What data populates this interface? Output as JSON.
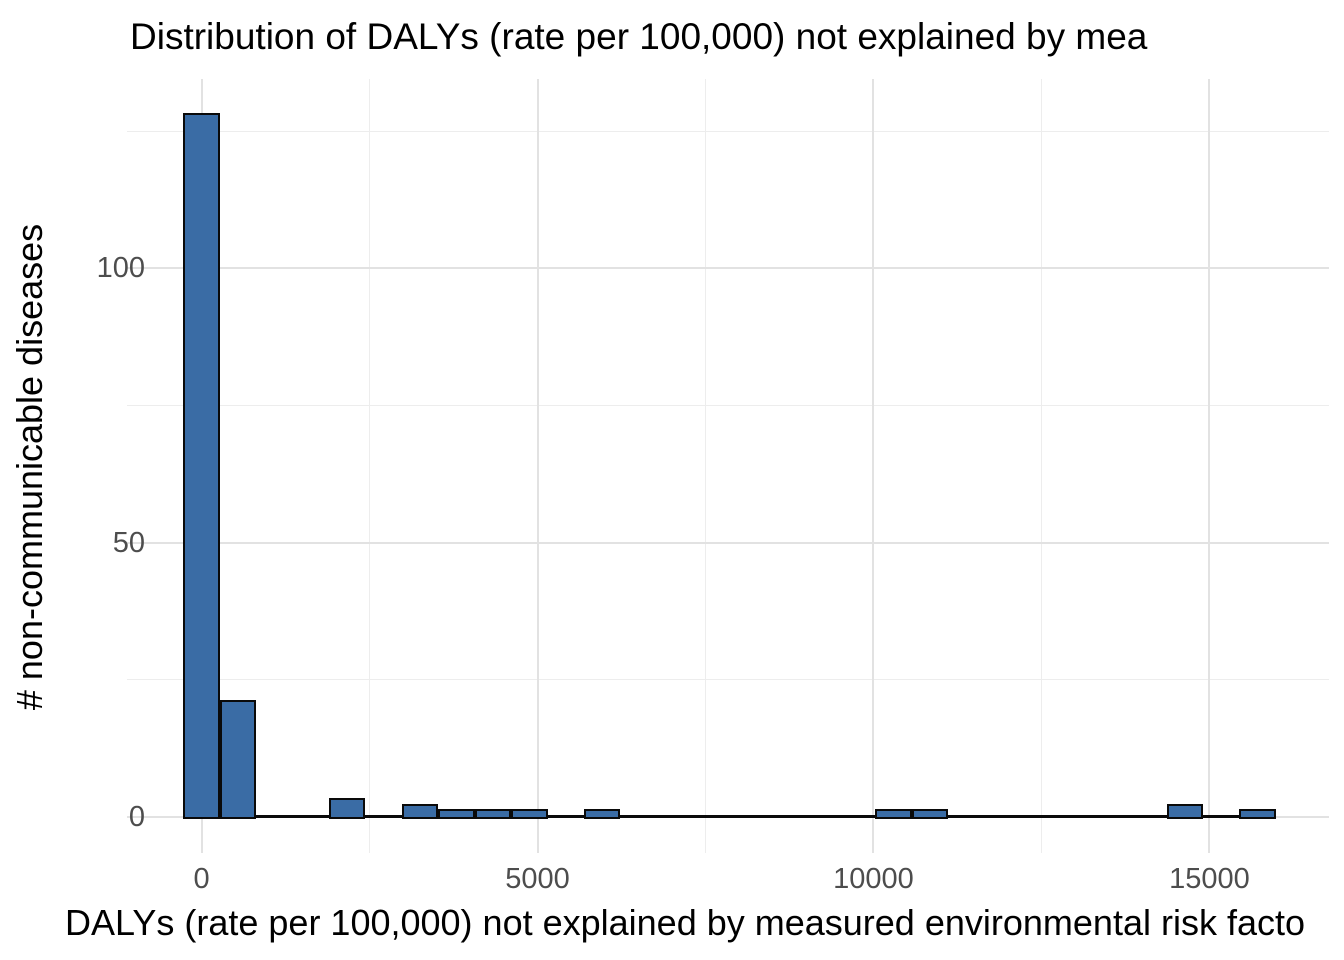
{
  "chart_data": {
    "type": "bar",
    "subtype": "histogram",
    "title": "Distribution of DALYs (rate per 100,000) not explained by mea",
    "xlabel": "DALYs (rate per 100,000) not explained by measured environmental risk facto",
    "ylabel": "# non-communicable diseases",
    "bin_width": 542,
    "first_bin_center": 0,
    "bin_centers": [
      0,
      542,
      1084,
      1626,
      2168,
      2710,
      3252,
      3794,
      4336,
      4878,
      5420,
      5962,
      6504,
      7046,
      7588,
      8130,
      8672,
      9214,
      9756,
      10298,
      10840,
      11382,
      11924,
      12466,
      13008,
      13550,
      14092,
      14634,
      15176,
      15718
    ],
    "counts": [
      128,
      21,
      0,
      0,
      3,
      0,
      2,
      1,
      1,
      1,
      0,
      1,
      0,
      0,
      0,
      0,
      0,
      0,
      0,
      1,
      1,
      0,
      0,
      0,
      0,
      0,
      0,
      2,
      0,
      1
    ],
    "x_ticks": [
      0,
      5000,
      10000,
      15000
    ],
    "x_minor_ticks": [
      2500,
      7500,
      12500
    ],
    "y_ticks": [
      0,
      50,
      100
    ],
    "y_minor_ticks": [
      25,
      75,
      125
    ],
    "xlim": [
      -1110,
      16780
    ],
    "ylim": [
      -6.6,
      134.5
    ],
    "grid": true,
    "legend": false,
    "colors": {
      "bar_fill": "#3A6CA5",
      "bar_border": "#0A0A0A",
      "major_grid": "#E2E2E2",
      "minor_grid": "#EDEDED",
      "tick_text": "#4D4D4D",
      "label_text": "#000000",
      "background": "#FFFFFF"
    }
  }
}
